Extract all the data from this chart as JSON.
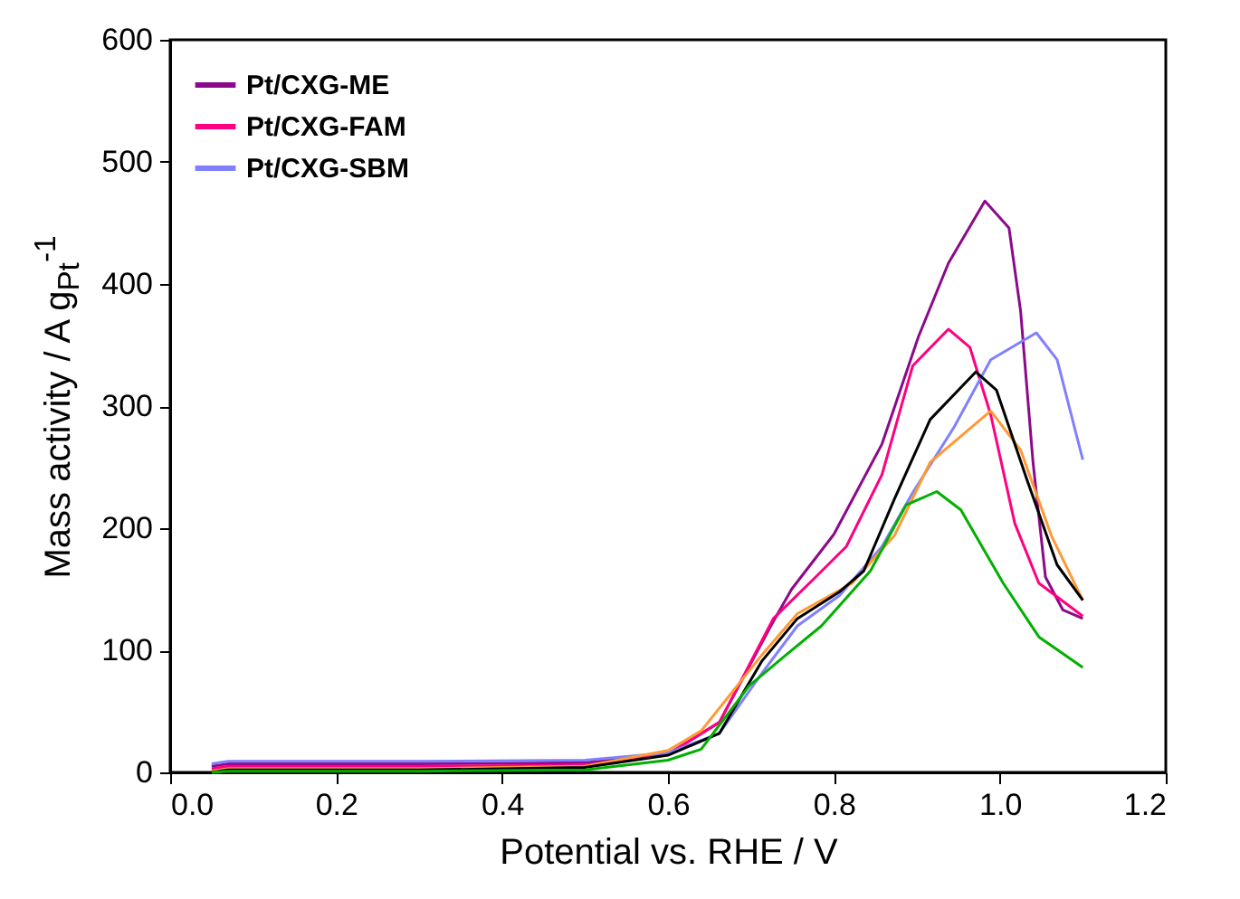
{
  "chart_data": {
    "type": "line",
    "xlabel": "Potential vs. RHE / V",
    "ylabel": "Mass activity / A g$_{Pt}$$^{-1}$",
    "xlim": [
      0,
      1.2
    ],
    "ylim": [
      0,
      600
    ],
    "xticks": [
      {
        "value": 0,
        "label": "0.0"
      },
      {
        "value": 0.2,
        "label": "0.2"
      },
      {
        "value": 0.4,
        "label": "0.4"
      },
      {
        "value": 0.6,
        "label": "0.6"
      },
      {
        "value": 0.8,
        "label": "0.8"
      },
      {
        "value": 1,
        "label": "1.0"
      },
      {
        "value": 1.2,
        "label": "1.2"
      }
    ],
    "yticks": [
      0,
      100,
      200,
      300,
      400,
      500,
      600
    ],
    "grid": false,
    "legend": "top left",
    "line_style": "solid",
    "marker": "none",
    "series": [
      {
        "name": "Pt/CXG-ME",
        "color": "#8b0a8b",
        "x": [
          0.05,
          0.07,
          0.3,
          0.5,
          0.6,
          0.662,
          0.724,
          0.749,
          0.8,
          0.858,
          0.902,
          0.938,
          0.982,
          1.011,
          1.025,
          1.04,
          1.055,
          1.076,
          1.1
        ],
        "values": [
          5,
          7,
          7,
          8,
          15,
          41,
          120,
          150,
          195,
          269,
          357,
          417,
          468,
          446,
          378,
          254,
          160,
          133,
          126
        ]
      },
      {
        "name": "Pt/CXG-FAM",
        "color": "#ff0080",
        "x": [
          0.05,
          0.07,
          0.3,
          0.5,
          0.6,
          0.662,
          0.727,
          0.778,
          0.815,
          0.858,
          0.895,
          0.938,
          0.964,
          0.989,
          1.018,
          1.047,
          1.1
        ],
        "values": [
          3,
          5,
          5,
          6,
          15,
          41,
          126,
          160,
          185,
          244,
          333,
          363,
          348,
          293,
          204,
          155,
          128
        ]
      },
      {
        "name": "Pt/CXG-SBM",
        "color": "#8080ff",
        "x": [
          0.05,
          0.07,
          0.3,
          0.5,
          0.6,
          0.662,
          0.713,
          0.756,
          0.807,
          0.858,
          0.895,
          0.945,
          0.989,
          1.044,
          1.069,
          1.1
        ],
        "values": [
          7,
          9,
          9,
          10,
          16,
          32,
          81,
          120,
          145,
          185,
          229,
          283,
          338,
          360,
          338,
          256
        ]
      },
      {
        "color": "#ff9933",
        "x": [
          0.05,
          0.07,
          0.3,
          0.5,
          0.6,
          0.64,
          0.713,
          0.756,
          0.822,
          0.873,
          0.916,
          0.989,
          1.025,
          1.062,
          1.1
        ],
        "values": [
          1,
          3,
          3,
          5,
          18,
          34,
          96,
          130,
          155,
          194,
          254,
          296,
          264,
          194,
          141
        ]
      },
      {
        "color": "#000000",
        "x": [
          0.05,
          0.07,
          0.3,
          0.5,
          0.6,
          0.662,
          0.713,
          0.756,
          0.807,
          0.836,
          0.873,
          0.916,
          0.971,
          0.996,
          1.033,
          1.069,
          1.1
        ],
        "values": [
          0,
          2,
          2,
          4,
          14,
          32,
          91,
          126,
          148,
          165,
          224,
          289,
          328,
          313,
          239,
          170,
          141
        ]
      },
      {
        "color": "#00b000",
        "x": [
          0.05,
          0.07,
          0.3,
          0.5,
          0.6,
          0.64,
          0.698,
          0.742,
          0.785,
          0.844,
          0.887,
          0.924,
          0.953,
          1.004,
          1.047,
          1.1
        ],
        "values": [
          0,
          1,
          1,
          2,
          10,
          19,
          71,
          96,
          120,
          165,
          219,
          230,
          215,
          155,
          111,
          86
        ]
      }
    ]
  }
}
